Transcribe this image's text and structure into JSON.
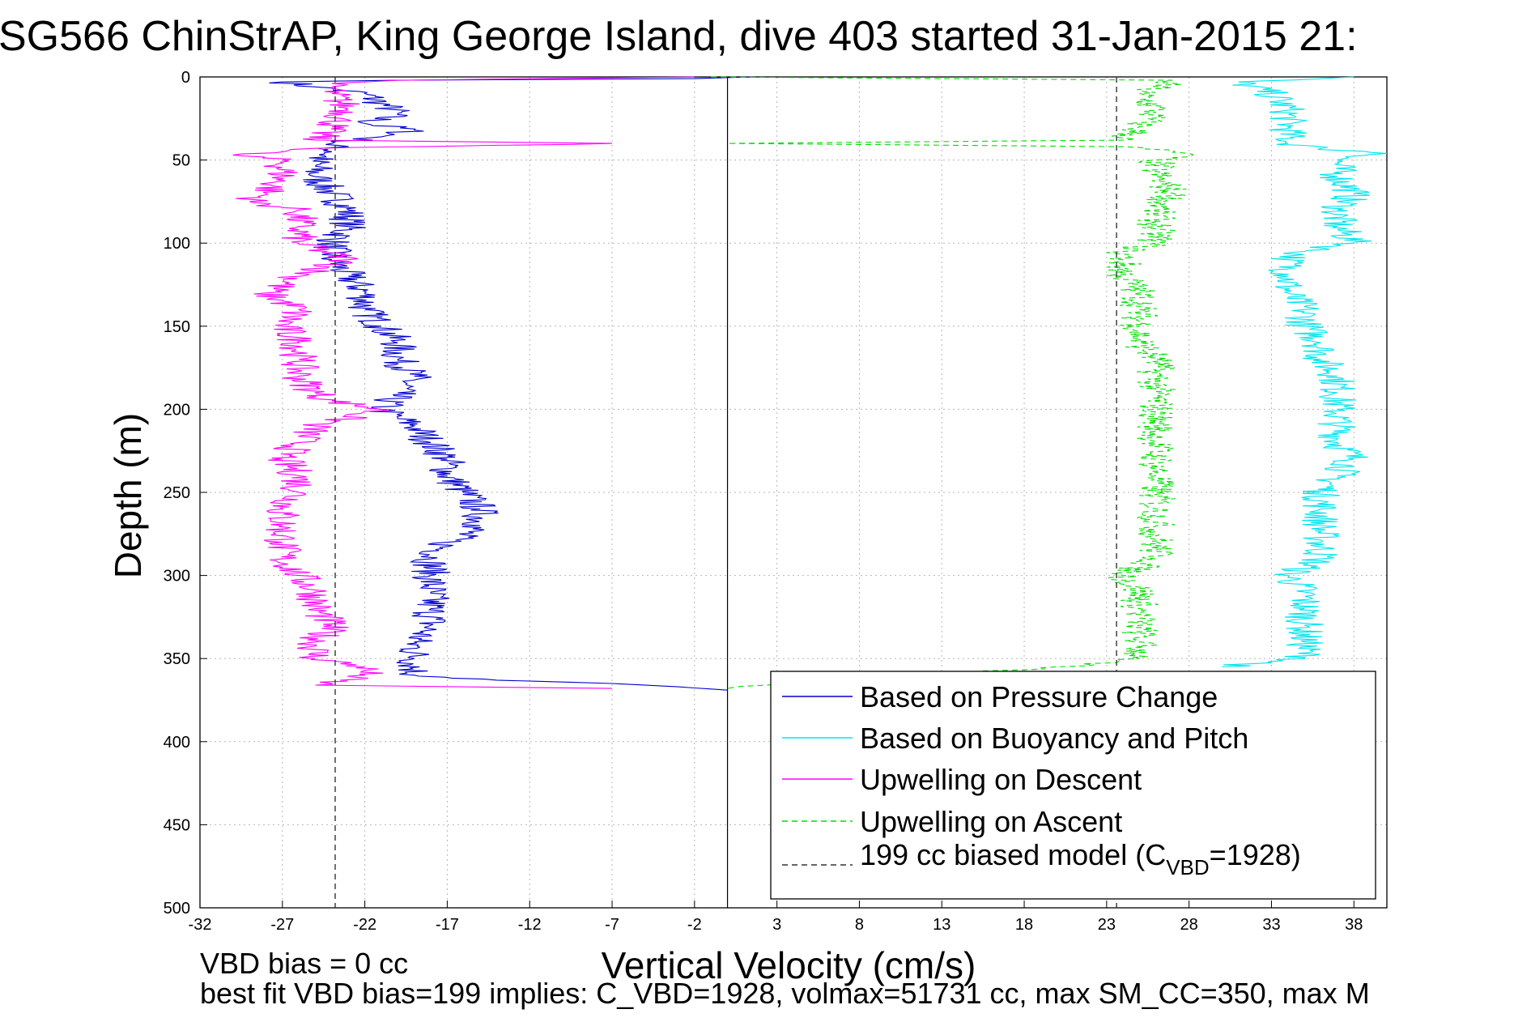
{
  "chart_data": {
    "type": "line",
    "title": "SG566 ChinStrAP, King George Island, dive 403 started 31-Jan-2015 21:",
    "xlabel": "Vertical Velocity (cm/s)",
    "ylabel": "Depth (m)",
    "xlim": [
      -32,
      40
    ],
    "ylim": [
      0,
      500
    ],
    "y_reversed": true,
    "x_ticks": [
      "-32",
      "-27",
      "-22",
      "-17",
      "-12",
      "-7",
      "-2",
      "3",
      "8",
      "13",
      "18",
      "23",
      "28",
      "33",
      "38"
    ],
    "y_ticks": [
      "0",
      "50",
      "100",
      "150",
      "200",
      "250",
      "300",
      "350",
      "400",
      "450",
      "500"
    ],
    "grid": true,
    "legend_position": "bottom-right",
    "zero_line_x": 0,
    "series": [
      {
        "name": "Based on Pressure Change",
        "color": "#0000cc",
        "style": "solid",
        "points": [
          [
            1.5,
            0
          ],
          [
            -2,
            1
          ],
          [
            -20,
            2
          ],
          [
            -27,
            3
          ],
          [
            -25,
            6
          ],
          [
            -22,
            10
          ],
          [
            -21,
            16
          ],
          [
            -20,
            22
          ],
          [
            -22,
            28
          ],
          [
            -19,
            32
          ],
          [
            -21,
            36
          ],
          [
            -24,
            40
          ],
          [
            -24,
            45
          ],
          [
            -25,
            50
          ],
          [
            -25,
            60
          ],
          [
            -24,
            70
          ],
          [
            -23,
            80
          ],
          [
            -23,
            90
          ],
          [
            -24,
            100
          ],
          [
            -24,
            110
          ],
          [
            -23,
            120
          ],
          [
            -22,
            130
          ],
          [
            -22,
            140
          ],
          [
            -21,
            150
          ],
          [
            -20,
            160
          ],
          [
            -20,
            170
          ],
          [
            -19,
            180
          ],
          [
            -20,
            190
          ],
          [
            -21,
            200
          ],
          [
            -20,
            205
          ],
          [
            -19,
            210
          ],
          [
            -18,
            220
          ],
          [
            -17,
            230
          ],
          [
            -17,
            240
          ],
          [
            -16,
            250
          ],
          [
            -15,
            260
          ],
          [
            -15,
            270
          ],
          [
            -17,
            280
          ],
          [
            -18,
            290
          ],
          [
            -18,
            300
          ],
          [
            -18,
            310
          ],
          [
            -18,
            320
          ],
          [
            -18,
            330
          ],
          [
            -19,
            340
          ],
          [
            -19,
            350
          ],
          [
            -19,
            360
          ],
          [
            -14,
            363
          ],
          [
            -7,
            365
          ],
          [
            -3,
            367
          ],
          [
            0,
            369
          ]
        ]
      },
      {
        "name": "Based on Buoyancy and Pitch",
        "color": "#00e5ee",
        "style": "solid",
        "points": [
          [
            38,
            0
          ],
          [
            31,
            3
          ],
          [
            33,
            10
          ],
          [
            34,
            20
          ],
          [
            34,
            30
          ],
          [
            34,
            40
          ],
          [
            36,
            43
          ],
          [
            40,
            46
          ],
          [
            37,
            50
          ],
          [
            37,
            60
          ],
          [
            38,
            70
          ],
          [
            37,
            80
          ],
          [
            37,
            90
          ],
          [
            38,
            100
          ],
          [
            35,
            105
          ],
          [
            34,
            110
          ],
          [
            34,
            120
          ],
          [
            34,
            130
          ],
          [
            35,
            140
          ],
          [
            35,
            150
          ],
          [
            36,
            160
          ],
          [
            36,
            170
          ],
          [
            37,
            180
          ],
          [
            37,
            190
          ],
          [
            37,
            200
          ],
          [
            37,
            210
          ],
          [
            37,
            220
          ],
          [
            38,
            230
          ],
          [
            37,
            240
          ],
          [
            36,
            250
          ],
          [
            36,
            260
          ],
          [
            36,
            270
          ],
          [
            36,
            280
          ],
          [
            36,
            290
          ],
          [
            34,
            300
          ],
          [
            35,
            310
          ],
          [
            35,
            320
          ],
          [
            35,
            330
          ],
          [
            35,
            340
          ],
          [
            35,
            350
          ],
          [
            30,
            355
          ]
        ]
      },
      {
        "name": "Upwelling on Descent",
        "color": "#ff00ff",
        "style": "solid",
        "points": [
          [
            -2,
            0
          ],
          [
            -20,
            2
          ],
          [
            -24,
            4
          ],
          [
            -24,
            10
          ],
          [
            -23,
            20
          ],
          [
            -24,
            30
          ],
          [
            -25,
            38
          ],
          [
            -7,
            40
          ],
          [
            -25,
            43
          ],
          [
            -30,
            47
          ],
          [
            -27,
            50
          ],
          [
            -27,
            60
          ],
          [
            -28,
            70
          ],
          [
            -29,
            75
          ],
          [
            -26,
            80
          ],
          [
            -26,
            90
          ],
          [
            -26,
            100
          ],
          [
            -23,
            110
          ],
          [
            -26,
            120
          ],
          [
            -28,
            130
          ],
          [
            -26,
            140
          ],
          [
            -27,
            150
          ],
          [
            -26,
            160
          ],
          [
            -26,
            170
          ],
          [
            -26,
            180
          ],
          [
            -25,
            190
          ],
          [
            -24,
            195
          ],
          [
            -21,
            200
          ],
          [
            -25,
            210
          ],
          [
            -26,
            220
          ],
          [
            -27,
            230
          ],
          [
            -26,
            240
          ],
          [
            -26,
            250
          ],
          [
            -27,
            260
          ],
          [
            -27,
            270
          ],
          [
            -27,
            280
          ],
          [
            -27,
            290
          ],
          [
            -26,
            300
          ],
          [
            -25,
            310
          ],
          [
            -25,
            320
          ],
          [
            -24,
            330
          ],
          [
            -25,
            340
          ],
          [
            -25,
            350
          ],
          [
            -22,
            355
          ],
          [
            -22,
            360
          ],
          [
            -25,
            366
          ],
          [
            -7,
            368
          ]
        ]
      },
      {
        "name": "Upwelling on Ascent",
        "color": "#00dd00",
        "style": "dashed",
        "points": [
          [
            -1,
            0
          ],
          [
            27,
            2
          ],
          [
            25,
            10
          ],
          [
            26,
            20
          ],
          [
            25,
            30
          ],
          [
            24,
            38
          ],
          [
            0,
            40
          ],
          [
            24,
            42
          ],
          [
            28,
            46
          ],
          [
            26,
            50
          ],
          [
            26,
            60
          ],
          [
            27,
            70
          ],
          [
            26,
            80
          ],
          [
            26,
            90
          ],
          [
            26,
            100
          ],
          [
            24,
            105
          ],
          [
            24,
            110
          ],
          [
            24,
            120
          ],
          [
            25,
            130
          ],
          [
            25,
            140
          ],
          [
            25,
            150
          ],
          [
            25,
            160
          ],
          [
            26,
            170
          ],
          [
            26,
            180
          ],
          [
            26,
            190
          ],
          [
            26,
            200
          ],
          [
            26,
            210
          ],
          [
            26,
            220
          ],
          [
            26,
            230
          ],
          [
            26,
            240
          ],
          [
            26,
            250
          ],
          [
            26,
            260
          ],
          [
            26,
            270
          ],
          [
            26,
            280
          ],
          [
            26,
            290
          ],
          [
            24,
            300
          ],
          [
            25,
            310
          ],
          [
            25,
            320
          ],
          [
            25,
            330
          ],
          [
            25,
            340
          ],
          [
            25,
            350
          ],
          [
            20,
            355
          ],
          [
            0,
            368
          ]
        ]
      },
      {
        "name": "199 cc biased model (C",
        "name_sub": "VBD",
        "name_tail": "=1928)",
        "color": "#333333",
        "style": "dashed",
        "points": [
          [
            -23.8,
            0
          ],
          [
            -23.8,
            500
          ]
        ],
        "points_b": [
          [
            23.6,
            0
          ],
          [
            23.6,
            500
          ]
        ]
      }
    ]
  },
  "notes": {
    "line1": "VBD bias = 0 cc",
    "line2": "best fit VBD bias=199 implies: C_VBD=1928, volmax=51731 cc, max SM_CC=350, max M"
  }
}
